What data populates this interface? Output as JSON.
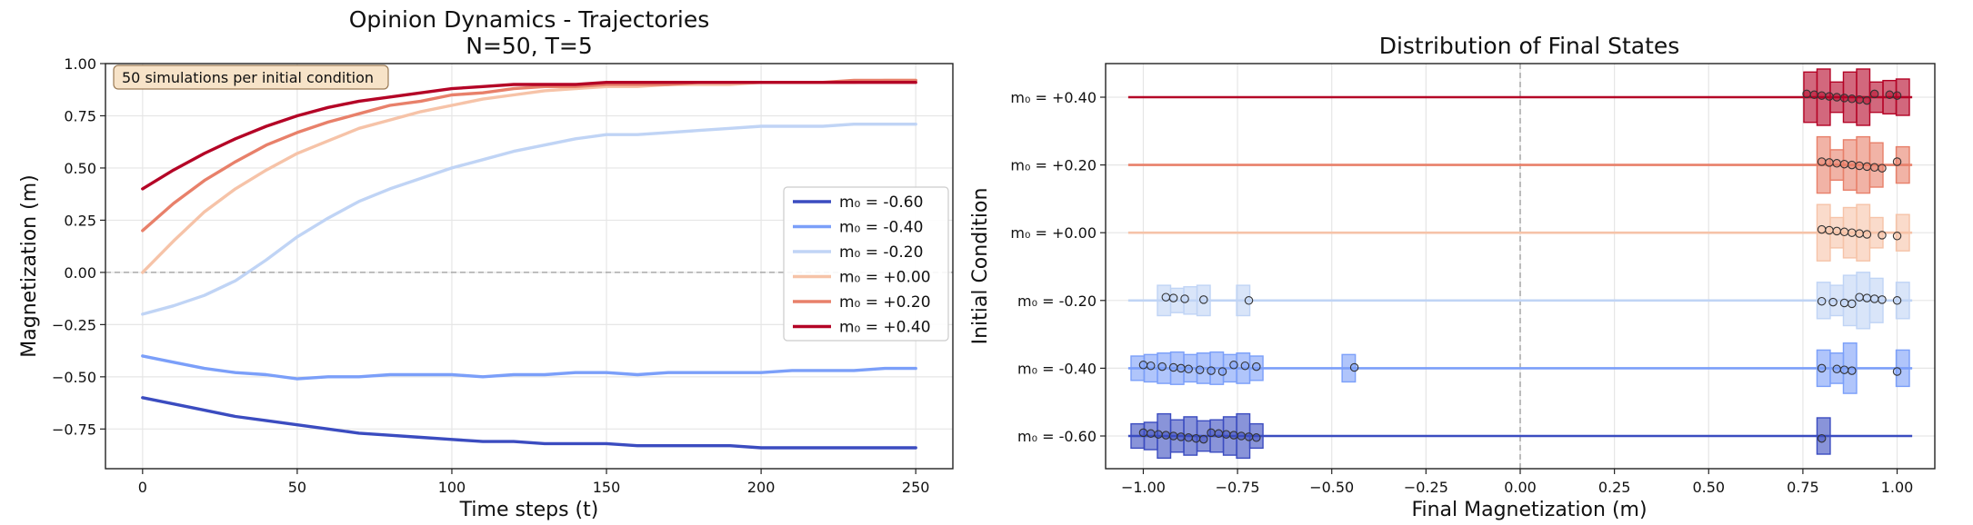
{
  "chart_data": [
    {
      "type": "line",
      "title_line1": "Opinion Dynamics - Trajectories",
      "title_line2": "N=50, T=5",
      "xlabel": "Time steps (t)",
      "ylabel": "Magnetization (m)",
      "xlim": [
        -12,
        262
      ],
      "ylim": [
        -0.94,
        1.0
      ],
      "xticks": [
        0,
        50,
        100,
        150,
        200,
        250
      ],
      "xtick_labels": [
        "0",
        "50",
        "100",
        "150",
        "200",
        "250"
      ],
      "yticks": [
        1.0,
        0.75,
        0.5,
        0.25,
        0.0,
        -0.25,
        -0.5,
        -0.75
      ],
      "ytick_labels": [
        "1.00",
        "0.75",
        "0.50",
        "0.25",
        "0.00",
        "−0.25",
        "−0.50",
        "−0.75"
      ],
      "grid": true,
      "zero_line": 0.0,
      "annotation": "50 simulations per initial condition",
      "legend_position": "center-right",
      "series": [
        {
          "name": "m₀ = -0.60",
          "color": "#3b4cc0",
          "x": [
            0,
            10,
            20,
            30,
            40,
            50,
            60,
            70,
            80,
            90,
            100,
            110,
            120,
            130,
            140,
            150,
            160,
            170,
            180,
            190,
            200,
            210,
            220,
            230,
            240,
            250
          ],
          "values": [
            -0.6,
            -0.63,
            -0.66,
            -0.69,
            -0.71,
            -0.73,
            -0.75,
            -0.77,
            -0.78,
            -0.79,
            -0.8,
            -0.81,
            -0.81,
            -0.82,
            -0.82,
            -0.82,
            -0.83,
            -0.83,
            -0.83,
            -0.83,
            -0.84,
            -0.84,
            -0.84,
            -0.84,
            -0.84,
            -0.84
          ]
        },
        {
          "name": "m₀ = -0.40",
          "color": "#7b9ff9",
          "x": [
            0,
            10,
            20,
            30,
            40,
            50,
            60,
            70,
            80,
            90,
            100,
            110,
            120,
            130,
            140,
            150,
            160,
            170,
            180,
            190,
            200,
            210,
            220,
            230,
            240,
            250
          ],
          "values": [
            -0.4,
            -0.43,
            -0.46,
            -0.48,
            -0.49,
            -0.51,
            -0.5,
            -0.5,
            -0.49,
            -0.49,
            -0.49,
            -0.5,
            -0.49,
            -0.49,
            -0.48,
            -0.48,
            -0.49,
            -0.48,
            -0.48,
            -0.48,
            -0.48,
            -0.47,
            -0.47,
            -0.47,
            -0.46,
            -0.46
          ]
        },
        {
          "name": "m₀ = -0.20",
          "color": "#c0d4f5",
          "x": [
            0,
            10,
            20,
            30,
            40,
            50,
            60,
            70,
            80,
            90,
            100,
            110,
            120,
            130,
            140,
            150,
            160,
            170,
            180,
            190,
            200,
            210,
            220,
            230,
            240,
            250
          ],
          "values": [
            -0.2,
            -0.16,
            -0.11,
            -0.04,
            0.06,
            0.17,
            0.26,
            0.34,
            0.4,
            0.45,
            0.5,
            0.54,
            0.58,
            0.61,
            0.64,
            0.66,
            0.66,
            0.67,
            0.68,
            0.69,
            0.7,
            0.7,
            0.7,
            0.71,
            0.71,
            0.71
          ]
        },
        {
          "name": "m₀ = +0.00",
          "color": "#f6c3a8",
          "x": [
            0,
            10,
            20,
            30,
            40,
            50,
            60,
            70,
            80,
            90,
            100,
            110,
            120,
            130,
            140,
            150,
            160,
            170,
            180,
            190,
            200,
            210,
            220,
            230,
            240,
            250
          ],
          "values": [
            0.0,
            0.15,
            0.29,
            0.4,
            0.49,
            0.57,
            0.63,
            0.69,
            0.73,
            0.77,
            0.8,
            0.83,
            0.85,
            0.87,
            0.88,
            0.89,
            0.89,
            0.9,
            0.9,
            0.9,
            0.91,
            0.91,
            0.91,
            0.91,
            0.92,
            0.92
          ]
        },
        {
          "name": "m₀ = +0.20",
          "color": "#e8806a",
          "x": [
            0,
            10,
            20,
            30,
            40,
            50,
            60,
            70,
            80,
            90,
            100,
            110,
            120,
            130,
            140,
            150,
            160,
            170,
            180,
            190,
            200,
            210,
            220,
            230,
            240,
            250
          ],
          "values": [
            0.2,
            0.33,
            0.44,
            0.53,
            0.61,
            0.67,
            0.72,
            0.76,
            0.8,
            0.82,
            0.85,
            0.86,
            0.88,
            0.89,
            0.89,
            0.9,
            0.9,
            0.9,
            0.91,
            0.91,
            0.91,
            0.91,
            0.91,
            0.92,
            0.92,
            0.92
          ]
        },
        {
          "name": "m₀ = +0.40",
          "color": "#b40426",
          "x": [
            0,
            10,
            20,
            30,
            40,
            50,
            60,
            70,
            80,
            90,
            100,
            110,
            120,
            130,
            140,
            150,
            160,
            170,
            180,
            190,
            200,
            210,
            220,
            230,
            240,
            250
          ],
          "values": [
            0.4,
            0.49,
            0.57,
            0.64,
            0.7,
            0.75,
            0.79,
            0.82,
            0.84,
            0.86,
            0.88,
            0.89,
            0.9,
            0.9,
            0.9,
            0.91,
            0.91,
            0.91,
            0.91,
            0.91,
            0.91,
            0.91,
            0.91,
            0.91,
            0.91,
            0.91
          ]
        }
      ]
    },
    {
      "type": "scatter",
      "title": "Distribution of Final States",
      "xlabel": "Final Magnetization (m)",
      "ylabel": "Initial Condition",
      "xlim": [
        -1.1,
        1.1
      ],
      "xticks": [
        -1.0,
        -0.75,
        -0.5,
        -0.25,
        0.0,
        0.25,
        0.5,
        0.75,
        1.0
      ],
      "xtick_labels": [
        "−1.00",
        "−0.75",
        "−0.50",
        "−0.25",
        "0.00",
        "0.25",
        "0.50",
        "0.75",
        "1.00"
      ],
      "grid": true,
      "center_line": 0.0,
      "rows": [
        {
          "label": "m₀ = +0.40",
          "color": "#b40426",
          "line_from": -1.04,
          "line_to": 1.04,
          "points": [
            0.76,
            0.78,
            0.8,
            0.82,
            0.84,
            0.86,
            0.88,
            0.9,
            0.92,
            0.94,
            0.98,
            1.0
          ]
        },
        {
          "label": "m₀ = +0.20",
          "color": "#e8806a",
          "line_from": -1.04,
          "line_to": 1.04,
          "points": [
            0.8,
            0.82,
            0.84,
            0.86,
            0.88,
            0.9,
            0.92,
            0.94,
            0.96,
            1.0
          ]
        },
        {
          "label": "m₀ = +0.00",
          "color": "#f6c3a8",
          "line_from": -1.04,
          "line_to": 1.04,
          "points": [
            0.8,
            0.82,
            0.84,
            0.86,
            0.88,
            0.9,
            0.92,
            0.96,
            1.0
          ]
        },
        {
          "label": "m₀ = -0.20",
          "color": "#c0d4f5",
          "line_from": -1.04,
          "line_to": 1.04,
          "points": [
            -0.94,
            -0.92,
            -0.89,
            -0.84,
            -0.72,
            0.8,
            0.83,
            0.86,
            0.88,
            0.9,
            0.92,
            0.94,
            0.96,
            1.0
          ]
        },
        {
          "label": "m₀ = -0.40",
          "color": "#7b9ff9",
          "line_from": -1.04,
          "line_to": 1.04,
          "points": [
            -1.0,
            -0.98,
            -0.95,
            -0.92,
            -0.9,
            -0.88,
            -0.85,
            -0.82,
            -0.79,
            -0.76,
            -0.73,
            -0.7,
            -0.44,
            0.8,
            0.84,
            0.86,
            0.88,
            1.0
          ]
        },
        {
          "label": "m₀ = -0.60",
          "color": "#3b4cc0",
          "line_from": -1.04,
          "line_to": 1.04,
          "points": [
            -1.0,
            -0.98,
            -0.96,
            -0.94,
            -0.92,
            -0.9,
            -0.88,
            -0.86,
            -0.84,
            -0.82,
            -0.8,
            -0.78,
            -0.76,
            -0.74,
            -0.72,
            -0.7,
            0.8
          ]
        }
      ]
    }
  ],
  "legend": [
    {
      "label": "m₀ = -0.60",
      "color": "#3b4cc0"
    },
    {
      "label": "m₀ = -0.40",
      "color": "#7b9ff9"
    },
    {
      "label": "m₀ = -0.20",
      "color": "#c0d4f5"
    },
    {
      "label": "m₀ = +0.00",
      "color": "#f6c3a8"
    },
    {
      "label": "m₀ = +0.20",
      "color": "#e8806a"
    },
    {
      "label": "m₀ = +0.40",
      "color": "#b40426"
    }
  ]
}
